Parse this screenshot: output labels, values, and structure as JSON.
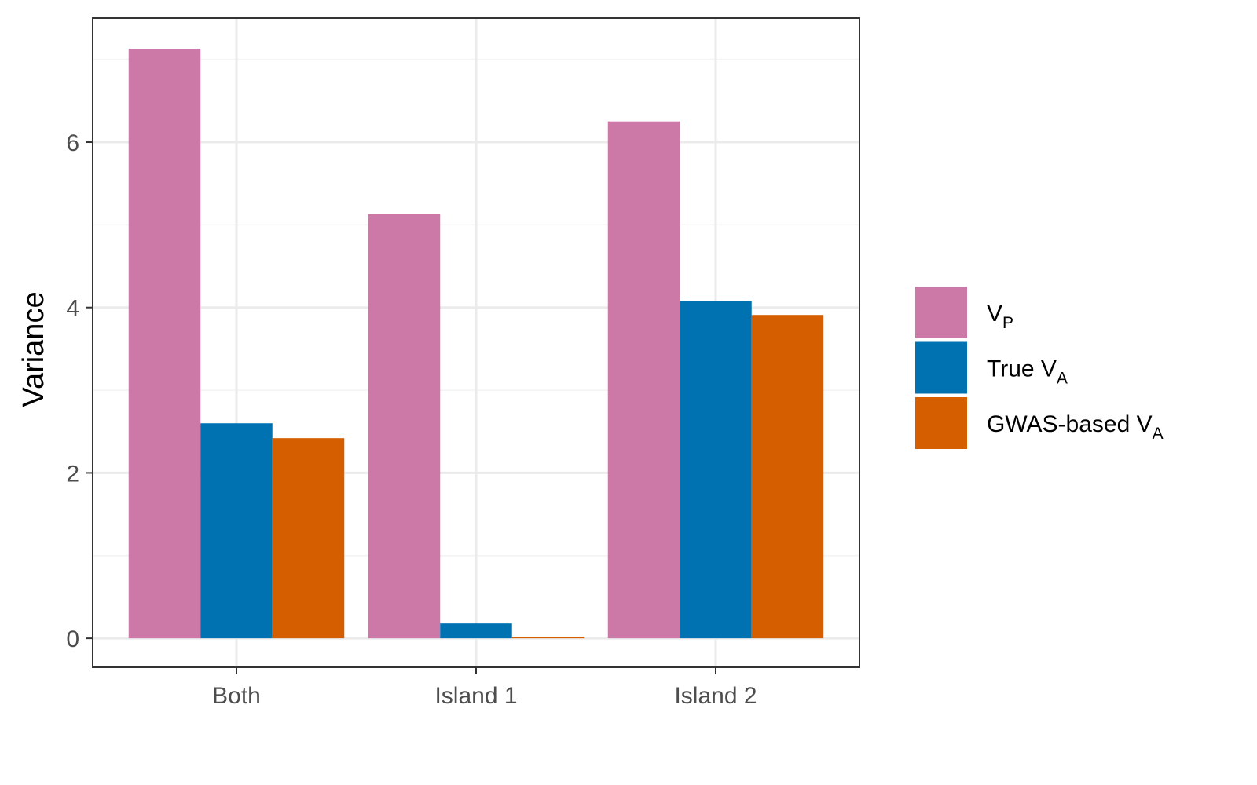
{
  "chart_data": {
    "type": "bar",
    "categories": [
      "Both",
      "Island 1",
      "Island 2"
    ],
    "series": [
      {
        "name": "V",
        "subscript": "P",
        "color": "#CC79A7",
        "values": [
          7.13,
          5.13,
          6.25
        ]
      },
      {
        "name": "True V",
        "subscript": "A",
        "color": "#0072B2",
        "values": [
          2.6,
          0.18,
          4.08
        ]
      },
      {
        "name": "GWAS-based V",
        "subscript": "A",
        "color": "#D55E00",
        "values": [
          2.42,
          0.02,
          3.91
        ]
      }
    ],
    "title": "",
    "xlabel": "",
    "ylabel": "Variance",
    "ylim": [
      -0.35,
      7.5
    ],
    "yticks": [
      0,
      2,
      4,
      6
    ],
    "ytick_labels": [
      "0",
      "2",
      "4",
      "6"
    ],
    "grid": true,
    "legend_position": "right",
    "colors": {
      "background": "#ffffff",
      "grid_major": "#ebebeb",
      "grid_minor": "#f3f3f3",
      "panel_border": "#333333"
    }
  }
}
